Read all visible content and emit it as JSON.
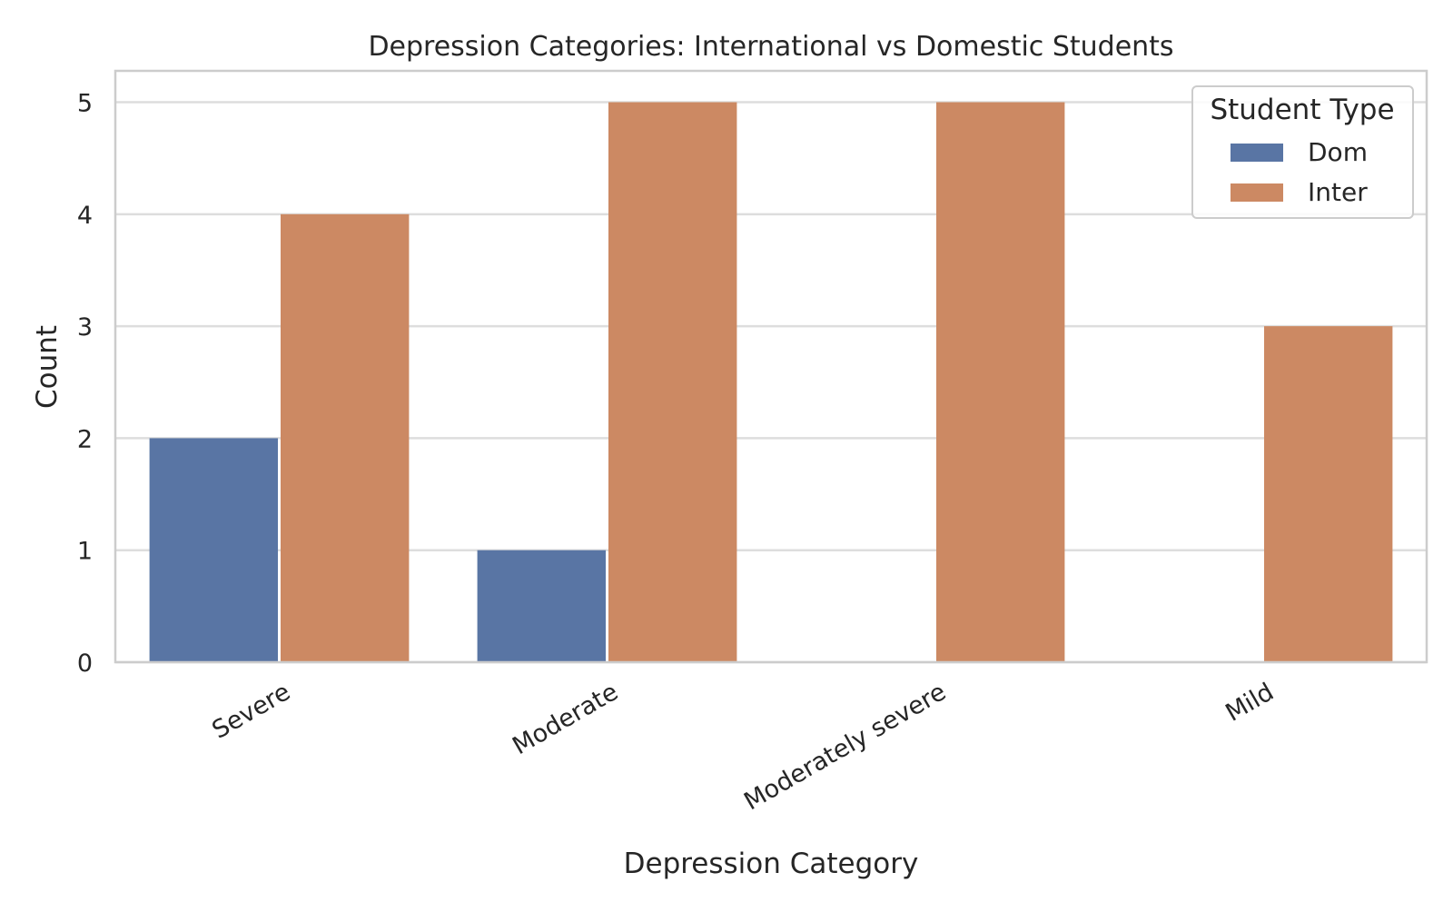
{
  "chart_data": {
    "type": "bar",
    "title": "Depression Categories: International vs Domestic Students",
    "xlabel": "Depression Category",
    "ylabel": "Count",
    "categories": [
      "Severe",
      "Moderate",
      "Moderately severe",
      "Mild"
    ],
    "series": [
      {
        "name": "Dom",
        "color": "#5975a4",
        "values": [
          2,
          1,
          0,
          0
        ]
      },
      {
        "name": "Inter",
        "color": "#cc8963",
        "values": [
          4,
          5,
          5,
          3
        ]
      }
    ],
    "yticks": [
      "0",
      "1",
      "2",
      "3",
      "4",
      "5"
    ],
    "ylim": [
      0,
      5.28
    ],
    "grid": true,
    "legend": {
      "title": "Student Type",
      "placement": "top-right"
    }
  }
}
